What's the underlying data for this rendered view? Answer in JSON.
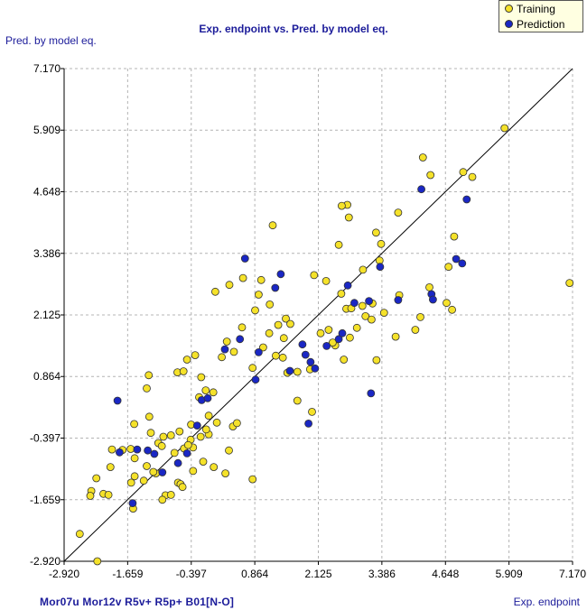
{
  "chart_data": {
    "type": "scatter",
    "title": "Exp. endpoint vs. Pred. by model eq.",
    "xlabel": "Exp. endpoint",
    "ylabel": "Pred. by model eq.",
    "descriptors": "Mor07u  Mor12v  R5v+  R5p+  B01[N-O]",
    "xlim": [
      -2.92,
      7.17
    ],
    "ylim": [
      -2.92,
      7.17
    ],
    "ticks": [
      -2.92,
      -1.659,
      -0.397,
      0.864,
      2.125,
      3.386,
      4.648,
      5.909,
      7.17
    ],
    "tick_labels": [
      "-2.920",
      "-1.659",
      "-0.397",
      "0.864",
      "2.125",
      "3.386",
      "4.648",
      "5.909",
      "7.170"
    ],
    "grid": true,
    "identity_line": true,
    "legend_position": "top-right",
    "colors": {
      "Training": "#f5e22a",
      "Prediction": "#1a27c4",
      "line": "#000000",
      "grid": "#b4b4b4",
      "text": "#1c1c9a"
    },
    "series": [
      {
        "name": "Training",
        "points": [
          [
            -2.61,
            -2.36
          ],
          [
            -2.26,
            -2.92
          ],
          [
            -2.38,
            -1.48
          ],
          [
            -2.14,
            -1.54
          ],
          [
            -1.55,
            -1.84
          ],
          [
            -2.4,
            -1.58
          ],
          [
            -2.28,
            -1.22
          ],
          [
            -2.04,
            -1.56
          ],
          [
            -2.0,
            -0.99
          ],
          [
            -1.59,
            -1.31
          ],
          [
            -1.52,
            -1.18
          ],
          [
            -1.34,
            -1.27
          ],
          [
            -1.1,
            -1.12
          ],
          [
            -0.91,
            -1.57
          ],
          [
            -0.97,
            -1.66
          ],
          [
            -0.8,
            -1.56
          ],
          [
            -0.66,
            -1.31
          ],
          [
            -0.61,
            -1.34
          ],
          [
            -0.57,
            -1.4
          ],
          [
            -1.28,
            -0.97
          ],
          [
            -1.15,
            -1.09
          ],
          [
            -1.52,
            -0.81
          ],
          [
            -1.97,
            -0.63
          ],
          [
            -1.76,
            -0.64
          ],
          [
            -1.6,
            -0.62
          ],
          [
            -1.53,
            -0.11
          ],
          [
            -1.05,
            -0.5
          ],
          [
            -0.95,
            -0.37
          ],
          [
            -1.2,
            -0.29
          ],
          [
            -0.8,
            -0.34
          ],
          [
            -0.73,
            -0.7
          ],
          [
            -0.54,
            -0.61
          ],
          [
            -0.36,
            -0.59
          ],
          [
            -0.36,
            -1.07
          ],
          [
            -0.16,
            -0.88
          ],
          [
            0.05,
            -0.99
          ],
          [
            0.28,
            -1.12
          ],
          [
            -0.05,
            -0.32
          ],
          [
            0.11,
            -0.08
          ],
          [
            0.43,
            -0.16
          ],
          [
            0.35,
            -0.65
          ],
          [
            0.51,
            -0.09
          ],
          [
            0.82,
            -1.24
          ],
          [
            -0.67,
            0.95
          ],
          [
            -0.55,
            0.97
          ],
          [
            -0.48,
            1.21
          ],
          [
            -0.32,
            1.3
          ],
          [
            -0.2,
            0.85
          ],
          [
            0.04,
            0.54
          ],
          [
            -0.05,
            0.06
          ],
          [
            0.45,
            1.37
          ],
          [
            0.61,
            1.87
          ],
          [
            0.87,
            2.22
          ],
          [
            1.16,
            2.34
          ],
          [
            1.48,
            2.05
          ],
          [
            1.28,
            1.29
          ],
          [
            1.51,
            0.94
          ],
          [
            1.71,
            0.96
          ],
          [
            1.96,
            1.01
          ],
          [
            2.46,
            1.5
          ],
          [
            2.41,
            1.56
          ],
          [
            2.63,
            1.21
          ],
          [
            2.68,
            2.25
          ],
          [
            2.78,
            2.26
          ],
          [
            3.06,
            2.1
          ],
          [
            2.89,
            1.86
          ],
          [
            3.18,
            2.03
          ],
          [
            3.2,
            2.36
          ],
          [
            3.34,
            3.24
          ],
          [
            3.37,
            3.58
          ],
          [
            3.27,
            3.81
          ],
          [
            3.71,
            4.22
          ],
          [
            3.73,
            2.53
          ],
          [
            3.43,
            2.17
          ],
          [
            3.66,
            1.68
          ],
          [
            4.05,
            1.82
          ],
          [
            4.15,
            2.08
          ],
          [
            4.33,
            2.69
          ],
          [
            4.35,
            4.99
          ],
          [
            4.2,
            5.35
          ],
          [
            4.71,
            3.11
          ],
          [
            4.82,
            3.73
          ],
          [
            4.67,
            2.37
          ],
          [
            4.78,
            2.23
          ],
          [
            5.0,
            5.05
          ],
          [
            5.18,
            4.95
          ],
          [
            5.82,
            5.95
          ],
          [
            7.11,
            2.78
          ],
          [
            3.01,
            3.05
          ],
          [
            2.73,
            4.12
          ],
          [
            2.7,
            4.38
          ],
          [
            2.59,
            4.36
          ],
          [
            2.53,
            3.56
          ],
          [
            2.28,
            2.82
          ],
          [
            2.04,
            2.94
          ],
          [
            1.22,
            3.96
          ],
          [
            0.99,
            2.84
          ],
          [
            0.94,
            2.54
          ],
          [
            0.63,
            2.88
          ],
          [
            0.36,
            2.74
          ],
          [
            0.08,
            2.6
          ],
          [
            1.33,
            1.92
          ],
          [
            1.44,
            1.65
          ],
          [
            1.57,
            1.94
          ],
          [
            1.15,
            1.75
          ],
          [
            1.03,
            1.46
          ],
          [
            0.82,
            1.04
          ],
          [
            0.31,
            1.58
          ],
          [
            0.21,
            1.26
          ],
          [
            -0.11,
            0.58
          ],
          [
            -0.24,
            0.44
          ],
          [
            -0.21,
            -0.37
          ],
          [
            -0.41,
            -0.43
          ],
          [
            -1.24,
            0.89
          ],
          [
            -1.28,
            0.62
          ],
          [
            -1.23,
            0.04
          ],
          [
            -0.98,
            -0.56
          ],
          [
            -0.63,
            -0.26
          ],
          [
            -0.46,
            -0.54
          ],
          [
            -0.1,
            -0.22
          ],
          [
            -0.4,
            -0.12
          ],
          [
            2.0,
            0.14
          ],
          [
            2.17,
            1.75
          ],
          [
            2.33,
            1.82
          ],
          [
            2.58,
            2.56
          ],
          [
            2.75,
            1.66
          ],
          [
            3.0,
            2.31
          ],
          [
            3.28,
            1.2
          ],
          [
            1.42,
            1.25
          ],
          [
            1.71,
            0.37
          ]
        ]
      },
      {
        "name": "Prediction",
        "points": [
          [
            -1.56,
            -1.73
          ],
          [
            -1.82,
            -0.69
          ],
          [
            -1.86,
            0.37
          ],
          [
            -1.47,
            -0.63
          ],
          [
            -1.26,
            -0.65
          ],
          [
            -1.13,
            -0.72
          ],
          [
            -0.97,
            -1.1
          ],
          [
            -0.66,
            -0.91
          ],
          [
            -0.48,
            -0.71
          ],
          [
            -0.28,
            -0.14
          ],
          [
            -0.19,
            0.38
          ],
          [
            -0.07,
            0.42
          ],
          [
            0.27,
            1.42
          ],
          [
            0.57,
            1.63
          ],
          [
            0.67,
            3.28
          ],
          [
            0.88,
            0.8
          ],
          [
            1.27,
            2.68
          ],
          [
            1.38,
            2.96
          ],
          [
            1.56,
            0.98
          ],
          [
            1.81,
            1.52
          ],
          [
            1.87,
            1.31
          ],
          [
            1.97,
            1.16
          ],
          [
            2.06,
            1.03
          ],
          [
            2.29,
            1.49
          ],
          [
            2.53,
            1.63
          ],
          [
            2.6,
            1.75
          ],
          [
            2.71,
            2.73
          ],
          [
            2.84,
            2.37
          ],
          [
            3.17,
            0.52
          ],
          [
            3.13,
            2.41
          ],
          [
            3.35,
            3.11
          ],
          [
            3.71,
            2.43
          ],
          [
            4.17,
            4.7
          ],
          [
            4.37,
            2.55
          ],
          [
            4.4,
            2.44
          ],
          [
            4.86,
            3.27
          ],
          [
            4.98,
            3.18
          ],
          [
            5.07,
            4.49
          ],
          [
            1.93,
            -0.1
          ],
          [
            0.94,
            1.36
          ]
        ]
      }
    ]
  },
  "legend": {
    "training_label": "Training",
    "prediction_label": "Prediction"
  }
}
